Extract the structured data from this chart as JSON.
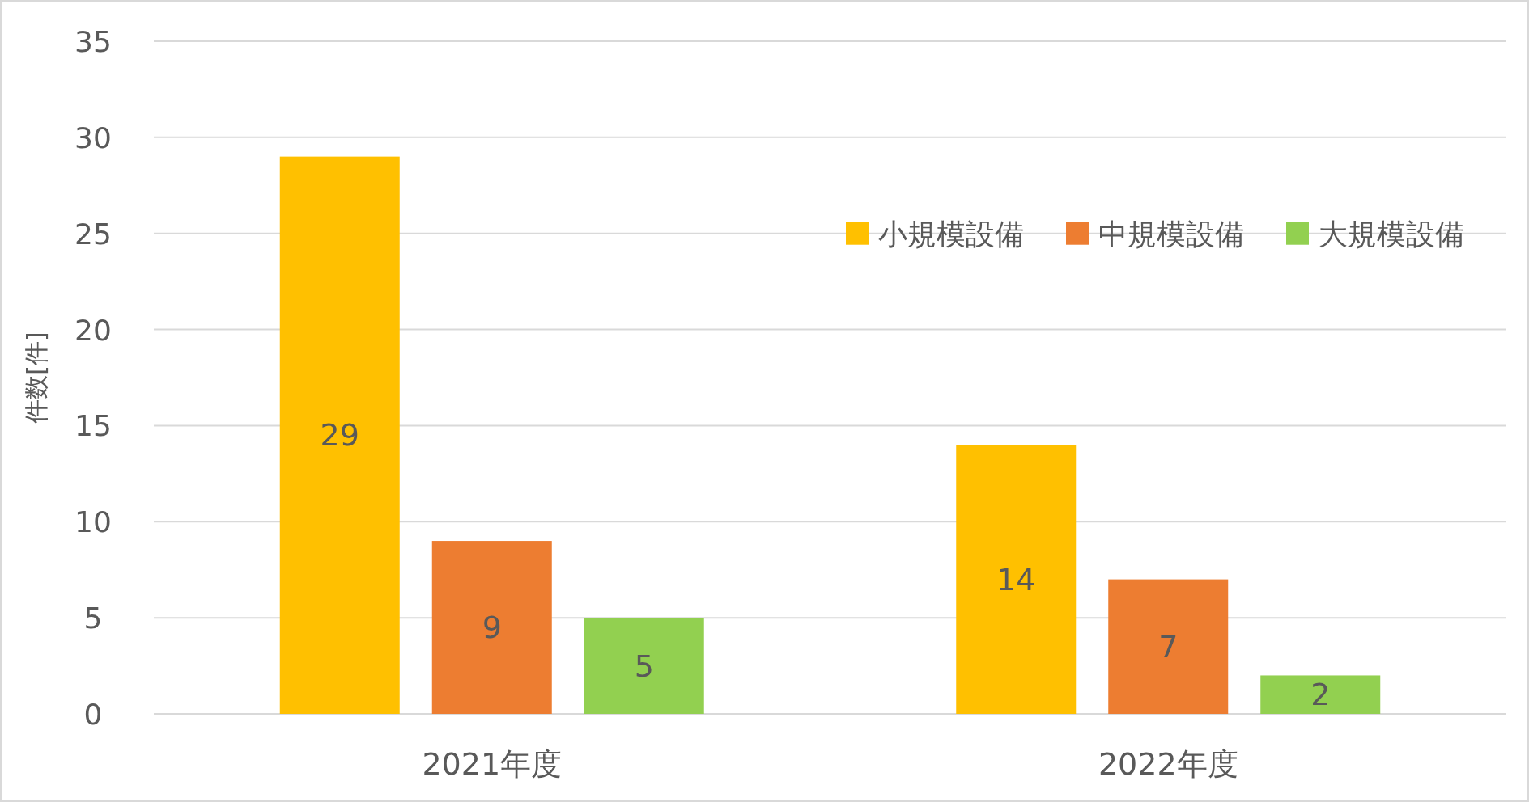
{
  "chart_data": {
    "type": "bar",
    "ylabel": "件数[件]",
    "categories": [
      "2021年度",
      "2022年度"
    ],
    "series": [
      {
        "name": "小規模設備",
        "color": "#ffc000",
        "values": [
          29,
          14
        ]
      },
      {
        "name": "中規模設備",
        "color": "#ed7d31",
        "values": [
          9,
          7
        ]
      },
      {
        "name": "大規模設備",
        "color": "#92d050",
        "values": [
          5,
          2
        ]
      }
    ],
    "ylim": [
      0,
      35
    ],
    "yticks": [
      0,
      5,
      10,
      15,
      20,
      25,
      30,
      35
    ],
    "grid": "y",
    "legend": "top right",
    "data_labels": true
  }
}
